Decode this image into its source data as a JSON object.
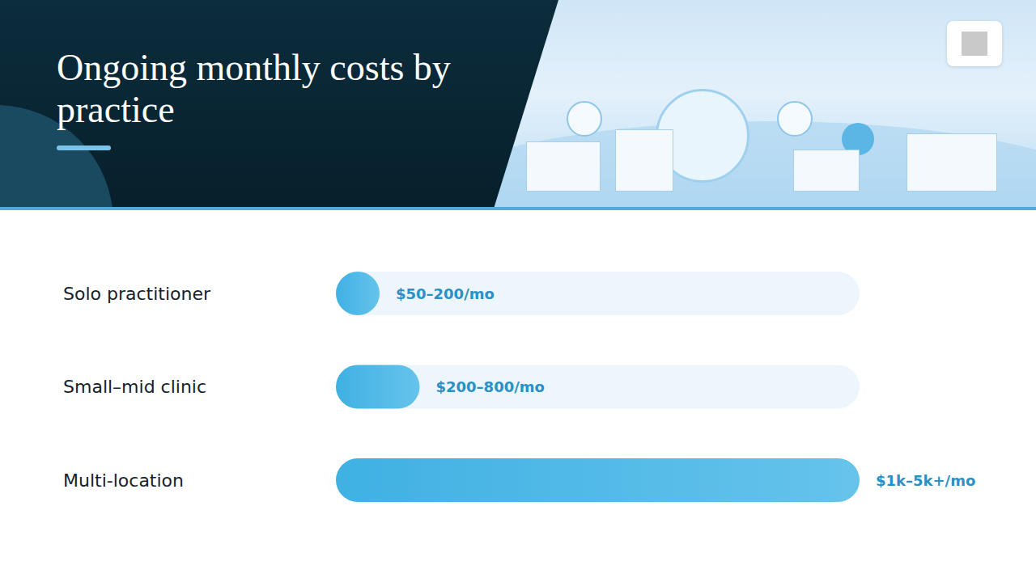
{
  "chart_data": {
    "type": "bar",
    "orientation": "horizontal",
    "title": "Ongoing monthly costs by practice",
    "categories": [
      "Solo practitioner",
      "Small–mid clinic",
      "Multi-location"
    ],
    "values": [
      200,
      800,
      5000
    ],
    "value_labels": [
      "$50–200/mo",
      "$200–800/mo",
      "$1k–5k+/mo"
    ],
    "color": "#3fb1e3",
    "xlim": [
      0,
      5000
    ],
    "xticks": [
      0,
      5000
    ],
    "grid": false,
    "data_labels": true,
    "tick_labels": "y"
  }
}
